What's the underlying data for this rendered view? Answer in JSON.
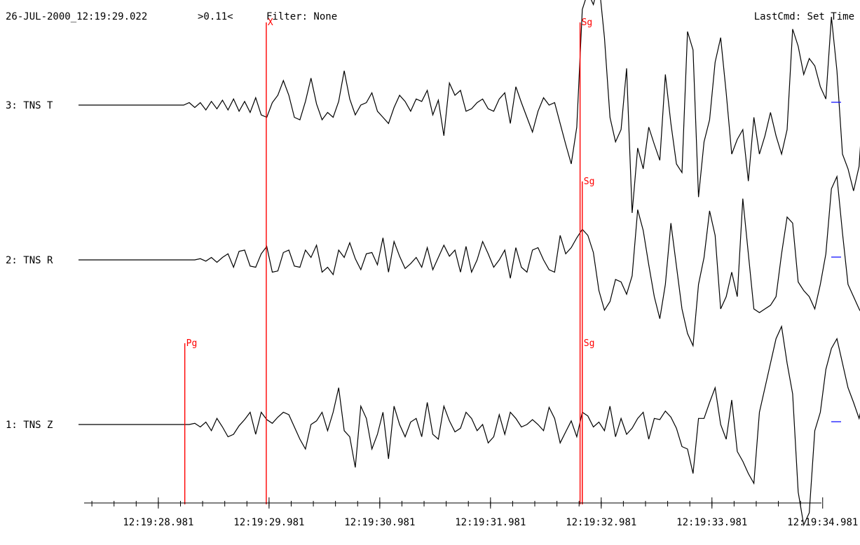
{
  "header": {
    "datetime": "26-JUL-2000_12:19:29.022",
    "cursor_readout": ">0.11<",
    "filter": "Filter: None",
    "last_command": "LastCmd: Set Time"
  },
  "colors": {
    "trace": "#000000",
    "pick": "#ff0000",
    "scale_marker": "#0000ff",
    "axis": "#000000"
  },
  "chart_data": {
    "type": "line",
    "title": "",
    "xlabel": "",
    "ylabel": "",
    "grid": false,
    "legend": "none",
    "x_range_seconds": [
      28.26,
      34.97
    ],
    "x_axis": {
      "tick_labels": [
        "12:19:28.981",
        "12:19:29.981",
        "12:19:30.981",
        "12:19:31.981",
        "12:19:32.981",
        "12:19:33.981",
        "12:19:34.981"
      ],
      "major_tick_seconds": [
        28.981,
        29.981,
        30.981,
        31.981,
        32.981,
        33.981,
        34.981
      ],
      "minor_tick_step_seconds": 0.2
    },
    "traces": [
      {
        "label": "3: TNS T",
        "start_second": 28.26,
        "sample_interval_seconds": 0.05,
        "values": [
          0,
          0,
          0,
          0,
          0,
          0,
          0,
          0,
          0,
          0,
          0,
          0,
          0,
          0,
          0,
          0,
          0,
          0,
          0,
          0,
          0.02,
          -0.02,
          0.02,
          -0.04,
          0.03,
          -0.03,
          0.04,
          -0.04,
          0.05,
          -0.05,
          0.03,
          -0.06,
          0.06,
          -0.08,
          -0.1,
          0.02,
          0.08,
          0.2,
          0.08,
          -0.1,
          -0.12,
          0.03,
          0.22,
          0.01,
          -0.12,
          -0.06,
          -0.1,
          0.03,
          0.28,
          0.05,
          -0.08,
          0.0,
          0.02,
          0.1,
          -0.05,
          -0.1,
          -0.15,
          -0.02,
          0.08,
          0.03,
          -0.05,
          0.05,
          0.03,
          0.12,
          -0.08,
          0.04,
          -0.25,
          0.18,
          0.08,
          0.12,
          -0.05,
          -0.03,
          0.02,
          0.05,
          -0.03,
          -0.05,
          0.05,
          0.1,
          -0.15,
          0.15,
          0.02,
          -0.1,
          -0.22,
          -0.05,
          0.06,
          0.0,
          0.02,
          -0.15,
          -0.32,
          -0.48,
          -0.18,
          0.78,
          0.92,
          0.82,
          1.0,
          0.55,
          -0.1,
          -0.3,
          -0.2,
          0.3,
          -0.88,
          -0.35,
          -0.52,
          -0.18,
          -0.32,
          -0.45,
          0.25,
          -0.15,
          -0.48,
          -0.55,
          0.6,
          0.45,
          -0.75,
          -0.3,
          -0.12,
          0.35,
          0.55,
          0.1,
          -0.4,
          -0.28,
          -0.2,
          -0.62,
          -0.1,
          -0.4,
          -0.25,
          -0.06,
          -0.25,
          -0.4,
          -0.2,
          0.62,
          0.48,
          0.25,
          0.38,
          0.32,
          0.15,
          0.05,
          0.72,
          0.28,
          -0.4,
          -0.52,
          -0.7,
          -0.5,
          0.2,
          0.4,
          -0.1,
          -0.5,
          -0.8,
          -0.6,
          -0.4,
          0.08,
          -0.32
        ]
      },
      {
        "label": "2: TNS R",
        "start_second": 28.26,
        "sample_interval_seconds": 0.05,
        "values": [
          0,
          0,
          0,
          0,
          0,
          0,
          0,
          0,
          0,
          0,
          0,
          0,
          0,
          0,
          0,
          0,
          0,
          0,
          0,
          0,
          0,
          0,
          0.01,
          -0.01,
          0.02,
          -0.02,
          0.02,
          0.05,
          -0.06,
          0.07,
          0.08,
          -0.05,
          -0.06,
          0.05,
          0.11,
          -0.1,
          -0.09,
          0.06,
          0.08,
          -0.05,
          -0.06,
          0.08,
          0.02,
          0.12,
          -0.1,
          -0.06,
          -0.12,
          0.08,
          0.02,
          0.14,
          0.01,
          -0.08,
          0.05,
          0.06,
          -0.04,
          0.18,
          -0.1,
          0.15,
          0.03,
          -0.07,
          -0.03,
          0.02,
          -0.06,
          0.1,
          -0.08,
          0.02,
          0.12,
          0.03,
          0.08,
          -0.1,
          0.11,
          -0.1,
          0.0,
          0.15,
          0.05,
          -0.06,
          0.0,
          0.08,
          -0.15,
          0.1,
          -0.06,
          -0.1,
          0.08,
          0.1,
          0.0,
          -0.08,
          -0.1,
          0.2,
          0.05,
          0.1,
          0.18,
          0.25,
          0.2,
          0.06,
          -0.25,
          -0.41,
          -0.34,
          -0.16,
          -0.18,
          -0.28,
          -0.13,
          0.41,
          0.24,
          -0.04,
          -0.3,
          -0.48,
          -0.2,
          0.3,
          -0.05,
          -0.4,
          -0.6,
          -0.7,
          -0.2,
          0.02,
          0.4,
          0.2,
          -0.4,
          -0.3,
          -0.1,
          -0.3,
          0.5,
          0.05,
          -0.4,
          -0.43,
          -0.4,
          -0.37,
          -0.3,
          0.05,
          0.35,
          0.3,
          -0.18,
          -0.25,
          -0.3,
          -0.4,
          -0.2,
          0.05,
          0.58,
          0.68,
          0.22,
          -0.2,
          -0.3,
          -0.4,
          -0.48,
          -0.28,
          0.1,
          -0.32,
          0.15,
          0.18,
          0.08,
          -0.05
        ]
      },
      {
        "label": "1: TNS Z",
        "start_second": 28.26,
        "sample_interval_seconds": 0.05,
        "values": [
          0,
          0,
          0,
          0,
          0,
          0,
          0,
          0,
          0,
          0,
          0,
          0,
          0,
          0,
          0,
          0,
          0,
          0,
          0,
          0,
          0,
          0.01,
          -0.02,
          0.02,
          -0.05,
          0.05,
          -0.02,
          -0.1,
          -0.08,
          -0.01,
          0.04,
          0.1,
          -0.08,
          0.1,
          0.04,
          0.01,
          0.06,
          0.1,
          0.08,
          -0.02,
          -0.12,
          -0.2,
          0.0,
          0.03,
          0.1,
          -0.05,
          0.1,
          0.3,
          -0.05,
          -0.1,
          -0.35,
          0.15,
          0.05,
          -0.2,
          -0.08,
          0.1,
          -0.28,
          0.15,
          0.0,
          -0.1,
          0.02,
          0.05,
          -0.1,
          0.18,
          -0.08,
          -0.12,
          0.15,
          0.03,
          -0.06,
          -0.03,
          0.1,
          0.05,
          -0.05,
          0.0,
          -0.15,
          -0.1,
          0.08,
          -0.08,
          0.1,
          0.05,
          -0.02,
          0.0,
          0.04,
          0.0,
          -0.05,
          0.14,
          0.05,
          -0.15,
          -0.06,
          0.03,
          -0.1,
          0.1,
          0.07,
          -0.02,
          0.02,
          -0.05,
          0.15,
          -0.1,
          0.05,
          -0.08,
          -0.03,
          0.05,
          0.1,
          -0.12,
          0.05,
          0.04,
          0.11,
          0.06,
          -0.03,
          -0.18,
          -0.2,
          -0.4,
          0.05,
          0.05,
          0.18,
          0.3,
          0.0,
          -0.12,
          0.2,
          -0.22,
          -0.3,
          -0.4,
          -0.48,
          0.1,
          0.3,
          0.5,
          0.7,
          0.8,
          0.5,
          0.25,
          -0.55,
          -0.82,
          -0.72,
          -0.05,
          0.1,
          0.45,
          0.62,
          0.7,
          0.5,
          0.3,
          0.18,
          0.05,
          0.25,
          0.4,
          0.58,
          0.8,
          0.86,
          0.7,
          -0.25,
          -0.05,
          0.15,
          0.05,
          -0.1,
          -0.4,
          -0.5,
          0.1,
          -0.02,
          -0.05
        ]
      }
    ],
    "picks": [
      {
        "label": "Pg",
        "second": 29.22,
        "trace_index": 2
      },
      {
        "label": "X",
        "second": 29.956,
        "trace_index": 0
      },
      {
        "label": "Sg",
        "second": 32.79,
        "trace_index": 0
      },
      {
        "label": "Sg",
        "second": 32.81,
        "trace_index": 1
      },
      {
        "label": "Sg",
        "second": 32.81,
        "trace_index": 2
      }
    ]
  }
}
